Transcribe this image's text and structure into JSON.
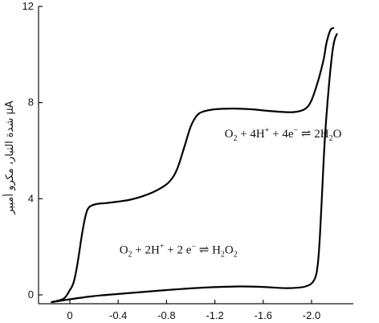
{
  "chart_data": {
    "type": "line",
    "ylabel": "شدة التيار، مكرو أمبير μA",
    "xlabel": "",
    "title": "",
    "xlim": [
      0.17,
      -2.26
    ],
    "ylim": [
      -0.4,
      12
    ],
    "x_ticks": [
      {
        "value": 0,
        "label": "0"
      },
      {
        "value": -0.4,
        "label": "-0.4"
      },
      {
        "value": -0.8,
        "label": "-0.8"
      },
      {
        "value": -1.2,
        "label": "-1.2"
      },
      {
        "value": -1.6,
        "label": "-1.6"
      },
      {
        "value": -2.0,
        "label": "-2.0"
      }
    ],
    "y_ticks": [
      {
        "value": 0,
        "label": "0"
      },
      {
        "value": 4,
        "label": "4"
      },
      {
        "value": 8,
        "label": "8"
      },
      {
        "value": 12,
        "label": "12"
      }
    ],
    "grid": false,
    "series": [
      {
        "x": [
          0.15,
          0.05,
          0.0,
          -0.03,
          -0.06,
          -0.1,
          -0.13,
          -0.16,
          -0.22,
          -0.3,
          -0.4,
          -0.5,
          -0.6,
          -0.7,
          -0.8,
          -0.86,
          -0.9,
          -0.95,
          -1.0,
          -1.05,
          -1.1,
          -1.2,
          -1.35,
          -1.5,
          -1.65,
          -1.8,
          -1.88,
          -1.95,
          -2.0,
          -2.06,
          -2.1,
          -2.12,
          -2.14,
          -2.16,
          -2.18
        ],
        "y": [
          -0.3,
          -0.15,
          0.2,
          0.5,
          1.2,
          2.5,
          3.3,
          3.65,
          3.78,
          3.82,
          3.88,
          3.96,
          4.1,
          4.3,
          4.6,
          4.95,
          5.4,
          6.2,
          7.0,
          7.45,
          7.62,
          7.72,
          7.75,
          7.72,
          7.65,
          7.6,
          7.62,
          7.75,
          8.1,
          9.0,
          9.8,
          10.4,
          10.8,
          11.05,
          11.1
        ]
      },
      {
        "x": [
          0.15,
          0.05,
          -0.2,
          -0.5,
          -0.8,
          -1.1,
          -1.4,
          -1.6,
          -1.8,
          -1.95,
          -2.02,
          -2.05,
          -2.07,
          -2.09,
          -2.11,
          -2.14,
          -2.17,
          -2.19,
          -2.21
        ],
        "y": [
          -0.3,
          -0.22,
          -0.05,
          0.08,
          0.2,
          0.3,
          0.35,
          0.33,
          0.28,
          0.35,
          0.6,
          1.2,
          2.5,
          4.5,
          6.5,
          8.5,
          10.0,
          10.6,
          10.85
        ]
      }
    ],
    "annotations": [
      {
        "name": "four-electron-reduction",
        "tokens": [
          {
            "t": "O"
          },
          {
            "t": "2",
            "style": "sub"
          },
          {
            "t": " + 4H"
          },
          {
            "t": "+",
            "style": "sup"
          },
          {
            "t": " + 4e"
          },
          {
            "t": "−",
            "style": "sup"
          },
          {
            "t": " ⇌ 2H"
          },
          {
            "t": "2",
            "style": "sub"
          },
          {
            "t": "O"
          }
        ],
        "x": -1.28,
        "y": 6.55
      },
      {
        "name": "two-electron-reduction",
        "tokens": [
          {
            "t": "O"
          },
          {
            "t": "2",
            "style": "sub"
          },
          {
            "t": " + 2H"
          },
          {
            "t": "+",
            "style": "sup"
          },
          {
            "t": " + 2 e"
          },
          {
            "t": "−",
            "style": "sup"
          },
          {
            "t": " ⇌ H"
          },
          {
            "t": "2",
            "style": "sub"
          },
          {
            "t": "O"
          },
          {
            "t": "2",
            "style": "sub"
          }
        ],
        "x": -0.41,
        "y": 1.72
      }
    ]
  }
}
